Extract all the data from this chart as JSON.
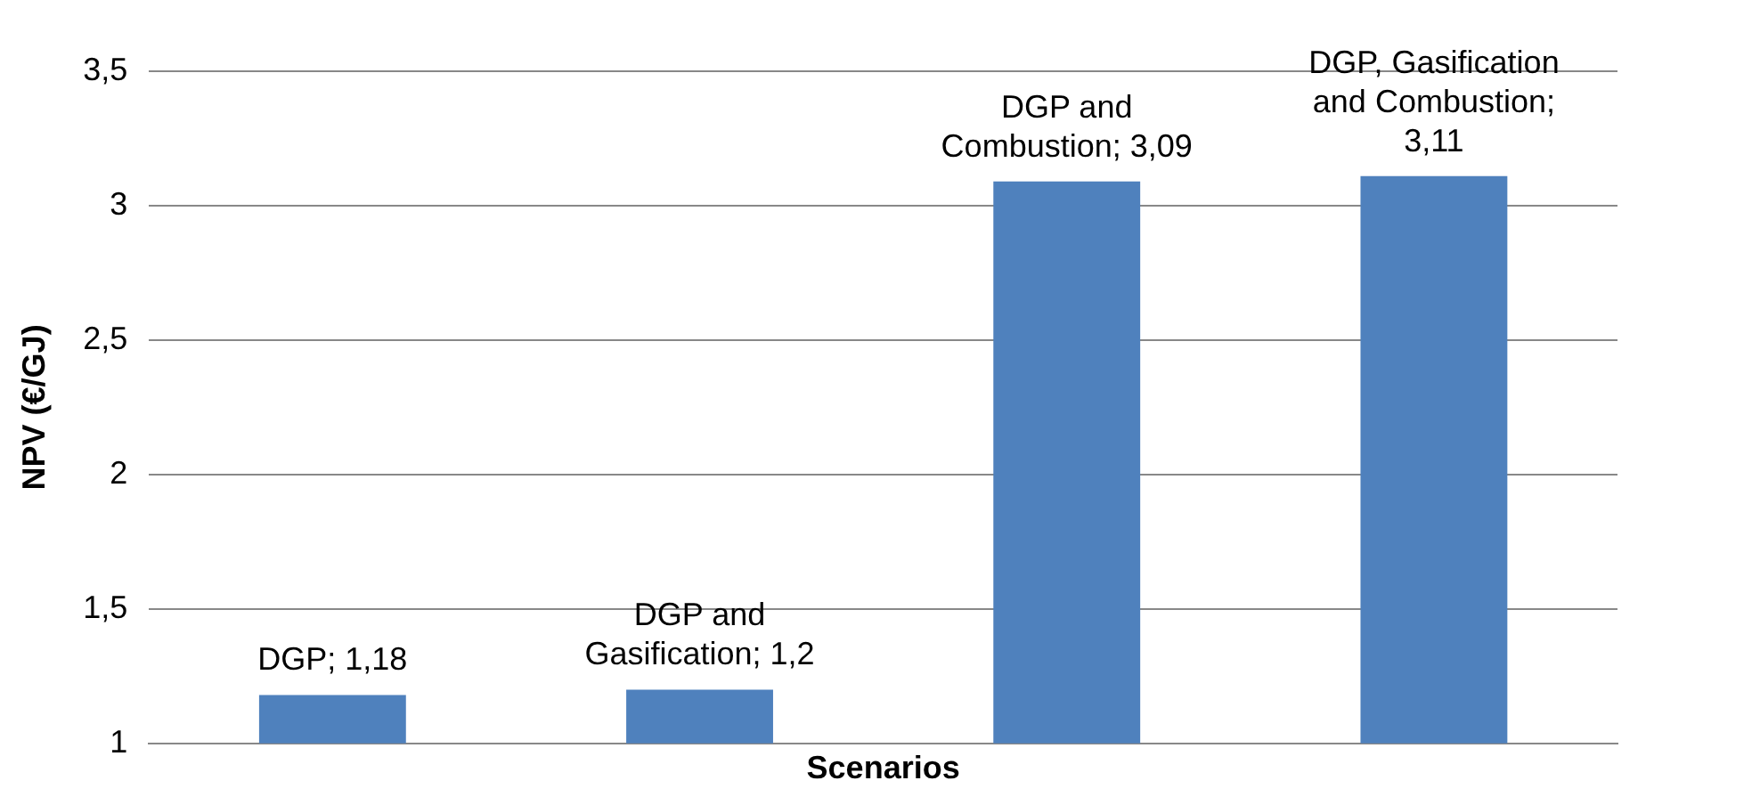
{
  "chart_data": {
    "type": "bar",
    "xlabel": "Scenarios",
    "ylabel": "NPV (€/GJ)",
    "categories": [
      null,
      null,
      null,
      null
    ],
    "values": [
      1.18,
      1.2,
      3.09,
      3.11
    ],
    "value_labels": [
      "DGP; 1,18",
      "DGP and Gasification; 1,2",
      "DGP and Combustion; 3,09",
      "DGP, Gasification and Combustion; 3,11"
    ],
    "color": "#4f81bd",
    "ylim": [
      1,
      3.5
    ],
    "yticks": [
      1,
      {
        "value": 1.5,
        "label": "1,5"
      },
      2,
      {
        "value": 2.5,
        "label": "2,5"
      },
      3,
      {
        "value": 3.5,
        "label": "3,5"
      }
    ],
    "grid": "y",
    "legend": false,
    "tick_labels": "y"
  }
}
